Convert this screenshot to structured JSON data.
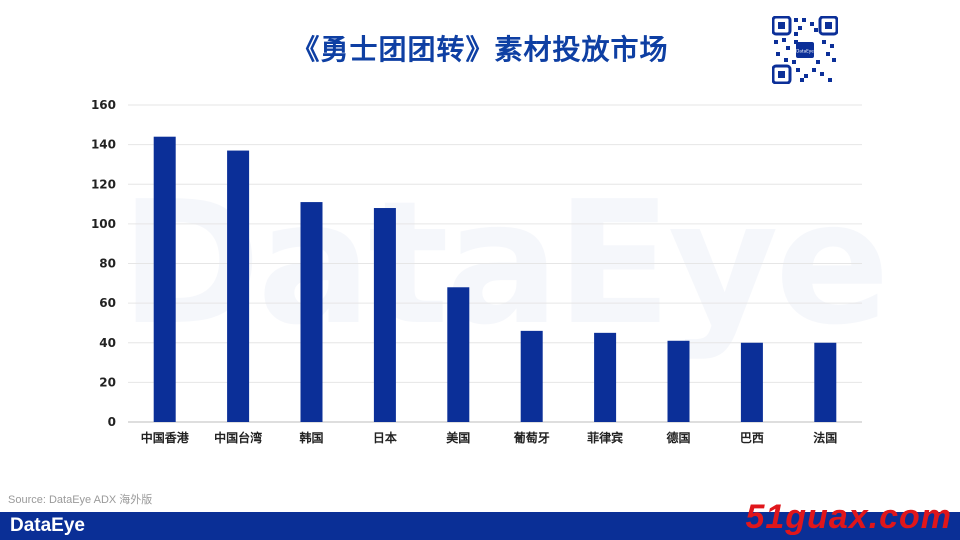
{
  "title": "《勇士团团转》素材投放市场",
  "source": "Source: DataEye ADX 海外版",
  "brand": "DataEye",
  "watermark_text": "DataEye",
  "footer_watermark": "51guax.com",
  "colors": {
    "bar": "#0b2f98",
    "title": "#0e3fa3",
    "footer": "#0a2f96",
    "grid": "#e6e6e6"
  },
  "chart_data": {
    "type": "bar",
    "title": "",
    "xlabel": "",
    "ylabel": "",
    "categories": [
      "中国香港",
      "中国台湾",
      "韩国",
      "日本",
      "美国",
      "葡萄牙",
      "菲律宾",
      "德国",
      "巴西",
      "法国"
    ],
    "values": [
      144,
      137,
      111,
      108,
      68,
      46,
      45,
      41,
      40,
      40
    ],
    "ylim": [
      0,
      160
    ],
    "yticks": [
      0,
      20,
      40,
      60,
      80,
      100,
      120,
      140,
      160
    ],
    "grid": true
  }
}
